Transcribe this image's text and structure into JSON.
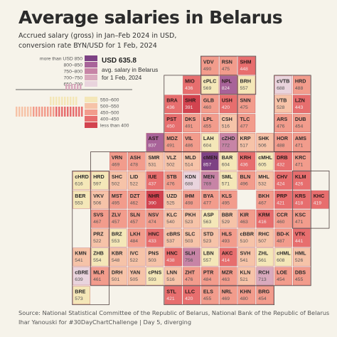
{
  "title": "Average salaries in Belarus",
  "subtitle_line1": "Accrued salary (gross) in Jan–Feb 2024 in USD,",
  "subtitle_line2": "conversion rate BYN/USD for 1 Feb, 2024",
  "footer_line1": "Source: National Statistical Committee of the Republic of Belarus, National Bank of the Republic of Belarus",
  "footer_line2": "Ihar Yanouski for #30DayChartChallenge | Day 5, diverging",
  "annotation": {
    "value": "USD 635.8",
    "line1": "avg. salary in Belarus",
    "line2": "for 1 Feb, 2024"
  },
  "colors": {
    "background": "#f6f3ea",
    "above": [
      "#e9d4dd",
      "#d9aabd",
      "#c784a6",
      "#a86399",
      "#7d4284"
    ],
    "below": [
      "#f4e7b8",
      "#f6c3a8",
      "#f29c8c",
      "#e76e6e",
      "#d2434f"
    ]
  },
  "chart_data": {
    "type": "heatmap",
    "title": "Average salaries in Belarus",
    "unit": "USD",
    "reference_value": 635.8,
    "legend_above": [
      "more than USD 850",
      "800–850",
      "750–800",
      "700–750",
      "650–700"
    ],
    "legend_below": [
      "550–600",
      "500–550",
      "450–500",
      "400–450",
      "less than 400"
    ],
    "districts": [
      {
        "code": "VDV",
        "value": 490,
        "col": 8,
        "row": 0
      },
      {
        "code": "RSN",
        "value": 475,
        "col": 9,
        "row": 0
      },
      {
        "code": "SHM",
        "value": 448,
        "col": 10,
        "row": 0
      },
      {
        "code": "MIO",
        "value": 436,
        "col": 7,
        "row": 1
      },
      {
        "code": "cPLC",
        "value": 569,
        "col": 8,
        "row": 1
      },
      {
        "code": "NPL",
        "value": 824,
        "col": 9,
        "row": 1
      },
      {
        "code": "BRH",
        "value": 557,
        "col": 10,
        "row": 1
      },
      {
        "code": "cVTB",
        "value": 688,
        "col": 12,
        "row": 1
      },
      {
        "code": "HRD",
        "value": 488,
        "col": 13,
        "row": 1
      },
      {
        "code": "BRA",
        "value": 436,
        "col": 6,
        "row": 2
      },
      {
        "code": "SHR",
        "value": 391,
        "col": 7,
        "row": 2
      },
      {
        "code": "GLB",
        "value": 460,
        "col": 8,
        "row": 2
      },
      {
        "code": "USH",
        "value": 420,
        "col": 9,
        "row": 2
      },
      {
        "code": "SNN",
        "value": 475,
        "col": 10,
        "row": 2
      },
      {
        "code": "VTB",
        "value": 528,
        "col": 12,
        "row": 2
      },
      {
        "code": "LZN",
        "value": 443,
        "col": 13,
        "row": 2
      },
      {
        "code": "PST",
        "value": 450,
        "col": 6,
        "row": 3
      },
      {
        "code": "DKS",
        "value": 491,
        "col": 7,
        "row": 3
      },
      {
        "code": "LPL",
        "value": 455,
        "col": 8,
        "row": 3
      },
      {
        "code": "CSH",
        "value": 516,
        "col": 9,
        "row": 3
      },
      {
        "code": "TLC",
        "value": 477,
        "col": 10,
        "row": 3
      },
      {
        "code": "ARS",
        "value": 476,
        "col": 12,
        "row": 3
      },
      {
        "code": "DUB",
        "value": 454,
        "col": 13,
        "row": 3
      },
      {
        "code": "AST",
        "value": 837,
        "col": 5,
        "row": 4
      },
      {
        "code": "MDZ",
        "value": 491,
        "col": 6,
        "row": 4
      },
      {
        "code": "VIL",
        "value": 486,
        "col": 7,
        "row": 4
      },
      {
        "code": "LAH",
        "value": 604,
        "col": 8,
        "row": 4
      },
      {
        "code": "cZHD",
        "value": 772,
        "col": 9,
        "row": 4
      },
      {
        "code": "KRP",
        "value": 517,
        "col": 10,
        "row": 4
      },
      {
        "code": "SHK",
        "value": 506,
        "col": 11,
        "row": 4
      },
      {
        "code": "HOR",
        "value": 488,
        "col": 12,
        "row": 4
      },
      {
        "code": "AMS",
        "value": 471,
        "col": 13,
        "row": 4
      },
      {
        "code": "VRN",
        "value": 469,
        "col": 3,
        "row": 5
      },
      {
        "code": "ASH",
        "value": 478,
        "col": 4,
        "row": 5
      },
      {
        "code": "SMR",
        "value": 531,
        "col": 5,
        "row": 5
      },
      {
        "code": "VLZ",
        "value": 502,
        "col": 6,
        "row": 5
      },
      {
        "code": "MLD",
        "value": 514,
        "col": 7,
        "row": 5
      },
      {
        "code": "cMEN",
        "value": 857,
        "col": 8,
        "row": 5
      },
      {
        "code": "BAR",
        "value": 604,
        "col": 9,
        "row": 5
      },
      {
        "code": "KRH",
        "value": 436,
        "col": 10,
        "row": 5
      },
      {
        "code": "cMHL",
        "value": 605,
        "col": 11,
        "row": 5
      },
      {
        "code": "DRB",
        "value": 432,
        "col": 12,
        "row": 5
      },
      {
        "code": "KRC",
        "value": 471,
        "col": 13,
        "row": 5
      },
      {
        "code": "cHRD",
        "value": 616,
        "col": 1,
        "row": 6
      },
      {
        "code": "HRD",
        "value": 597,
        "col": 2,
        "row": 6
      },
      {
        "code": "SHC",
        "value": 502,
        "col": 3,
        "row": 6
      },
      {
        "code": "LID",
        "value": 522,
        "col": 4,
        "row": 6
      },
      {
        "code": "IUE",
        "value": 437,
        "col": 5,
        "row": 6
      },
      {
        "code": "STB",
        "value": 476,
        "col": 6,
        "row": 6
      },
      {
        "code": "KDN",
        "value": 688,
        "col": 7,
        "row": 6
      },
      {
        "code": "MEN",
        "value": 769,
        "col": 8,
        "row": 6
      },
      {
        "code": "SML",
        "value": 571,
        "col": 9,
        "row": 6
      },
      {
        "code": "BLN",
        "value": 496,
        "col": 10,
        "row": 6
      },
      {
        "code": "MHL",
        "value": 532,
        "col": 11,
        "row": 6
      },
      {
        "code": "CHV",
        "value": 424,
        "col": 12,
        "row": 6
      },
      {
        "code": "KLM",
        "value": 426,
        "col": 13,
        "row": 6
      },
      {
        "code": "BER",
        "value": 553,
        "col": 1,
        "row": 7
      },
      {
        "code": "VKV",
        "value": 506,
        "col": 2,
        "row": 7
      },
      {
        "code": "MST",
        "value": 495,
        "col": 3,
        "row": 7
      },
      {
        "code": "DZT",
        "value": 462,
        "col": 4,
        "row": 7
      },
      {
        "code": "NHR",
        "value": 390,
        "col": 5,
        "row": 7
      },
      {
        "code": "UZD",
        "value": 525,
        "col": 6,
        "row": 7
      },
      {
        "code": "IHM",
        "value": 498,
        "col": 7,
        "row": 7
      },
      {
        "code": "BYA",
        "value": 477,
        "col": 8,
        "row": 7
      },
      {
        "code": "KLS",
        "value": 495,
        "col": 9,
        "row": 7
      },
      {
        "code": "BKH",
        "value": 467,
        "col": 11,
        "row": 7
      },
      {
        "code": "PRP",
        "value": 421,
        "col": 12,
        "row": 7
      },
      {
        "code": "KRS",
        "value": 418,
        "col": 13,
        "row": 7
      },
      {
        "code": "KHC",
        "value": 419,
        "col": 14,
        "row": 7
      },
      {
        "code": "SVS",
        "value": 467,
        "col": 2,
        "row": 8
      },
      {
        "code": "ZLV",
        "value": 457,
        "col": 3,
        "row": 8
      },
      {
        "code": "SLN",
        "value": 457,
        "col": 4,
        "row": 8
      },
      {
        "code": "NSV",
        "value": 474,
        "col": 5,
        "row": 8
      },
      {
        "code": "KLC",
        "value": 540,
        "col": 6,
        "row": 8
      },
      {
        "code": "PKH",
        "value": 523,
        "col": 7,
        "row": 8
      },
      {
        "code": "ASP",
        "value": 563,
        "col": 8,
        "row": 8
      },
      {
        "code": "BBR",
        "value": 529,
        "col": 9,
        "row": 8
      },
      {
        "code": "KIR",
        "value": 463,
        "col": 10,
        "row": 8
      },
      {
        "code": "KRM",
        "value": 416,
        "col": 11,
        "row": 8
      },
      {
        "code": "CCR",
        "value": 460,
        "col": 12,
        "row": 8
      },
      {
        "code": "KSC",
        "value": 471,
        "col": 13,
        "row": 8
      },
      {
        "code": "PRZ",
        "value": 522,
        "col": 2,
        "row": 9
      },
      {
        "code": "BRZ",
        "value": 553,
        "col": 3,
        "row": 9
      },
      {
        "code": "LKH",
        "value": 484,
        "col": 4,
        "row": 9
      },
      {
        "code": "HNC",
        "value": 433,
        "col": 5,
        "row": 9
      },
      {
        "code": "cBRS",
        "value": 537,
        "col": 6,
        "row": 9
      },
      {
        "code": "SLC",
        "value": 503,
        "col": 7,
        "row": 9
      },
      {
        "code": "STD",
        "value": 523,
        "col": 8,
        "row": 9
      },
      {
        "code": "HLS",
        "value": 493,
        "col": 9,
        "row": 9
      },
      {
        "code": "cBBR",
        "value": 510,
        "col": 10,
        "row": 9
      },
      {
        "code": "RHC",
        "value": 507,
        "col": 11,
        "row": 9
      },
      {
        "code": "BD-K",
        "value": 487,
        "col": 12,
        "row": 9
      },
      {
        "code": "VTK",
        "value": 441,
        "col": 13,
        "row": 9
      },
      {
        "code": "KMN",
        "value": 541,
        "col": 1,
        "row": 10
      },
      {
        "code": "ZHB",
        "value": 554,
        "col": 2,
        "row": 10
      },
      {
        "code": "KBR",
        "value": 548,
        "col": 3,
        "row": 10
      },
      {
        "code": "IVC",
        "value": 522,
        "col": 4,
        "row": 10
      },
      {
        "code": "PNS",
        "value": 503,
        "col": 5,
        "row": 10
      },
      {
        "code": "HNC",
        "value": 438,
        "col": 6,
        "row": 10
      },
      {
        "code": "SLH",
        "value": 756,
        "col": 7,
        "row": 10
      },
      {
        "code": "LBN",
        "value": 557,
        "col": 8,
        "row": 10
      },
      {
        "code": "AKC",
        "value": 414,
        "col": 9,
        "row": 10
      },
      {
        "code": "SVH",
        "value": 541,
        "col": 10,
        "row": 10
      },
      {
        "code": "ZHL",
        "value": 561,
        "col": 11,
        "row": 10
      },
      {
        "code": "cHML",
        "value": 608,
        "col": 12,
        "row": 10
      },
      {
        "code": "HML",
        "value": 526,
        "col": 13,
        "row": 10
      },
      {
        "code": "cBRE",
        "value": 639,
        "col": 1,
        "row": 11
      },
      {
        "code": "MLR",
        "value": 461,
        "col": 2,
        "row": 11
      },
      {
        "code": "DRH",
        "value": 501,
        "col": 3,
        "row": 11
      },
      {
        "code": "YAN",
        "value": 505,
        "col": 4,
        "row": 11
      },
      {
        "code": "cPNS",
        "value": 593,
        "col": 5,
        "row": 11
      },
      {
        "code": "LNN",
        "value": 516,
        "col": 6,
        "row": 11
      },
      {
        "code": "ZHT",
        "value": 476,
        "col": 7,
        "row": 11
      },
      {
        "code": "PTR",
        "value": 484,
        "col": 8,
        "row": 11
      },
      {
        "code": "MZR",
        "value": 463,
        "col": 9,
        "row": 11
      },
      {
        "code": "KLN",
        "value": 521,
        "col": 10,
        "row": 11
      },
      {
        "code": "RCH",
        "value": 713,
        "col": 11,
        "row": 11
      },
      {
        "code": "LOE",
        "value": 454,
        "col": 12,
        "row": 11
      },
      {
        "code": "DBS",
        "value": 455,
        "col": 13,
        "row": 11
      },
      {
        "code": "BRE",
        "value": 573,
        "col": 1,
        "row": 12
      },
      {
        "code": "STL",
        "value": 421,
        "col": 6,
        "row": 12
      },
      {
        "code": "LLC",
        "value": 420,
        "col": 7,
        "row": 12
      },
      {
        "code": "ELS",
        "value": 455,
        "col": 8,
        "row": 12
      },
      {
        "code": "NRL",
        "value": 469,
        "col": 9,
        "row": 12
      },
      {
        "code": "KHN",
        "value": 480,
        "col": 10,
        "row": 12
      },
      {
        "code": "BRG",
        "value": 454,
        "col": 11,
        "row": 12
      }
    ]
  }
}
